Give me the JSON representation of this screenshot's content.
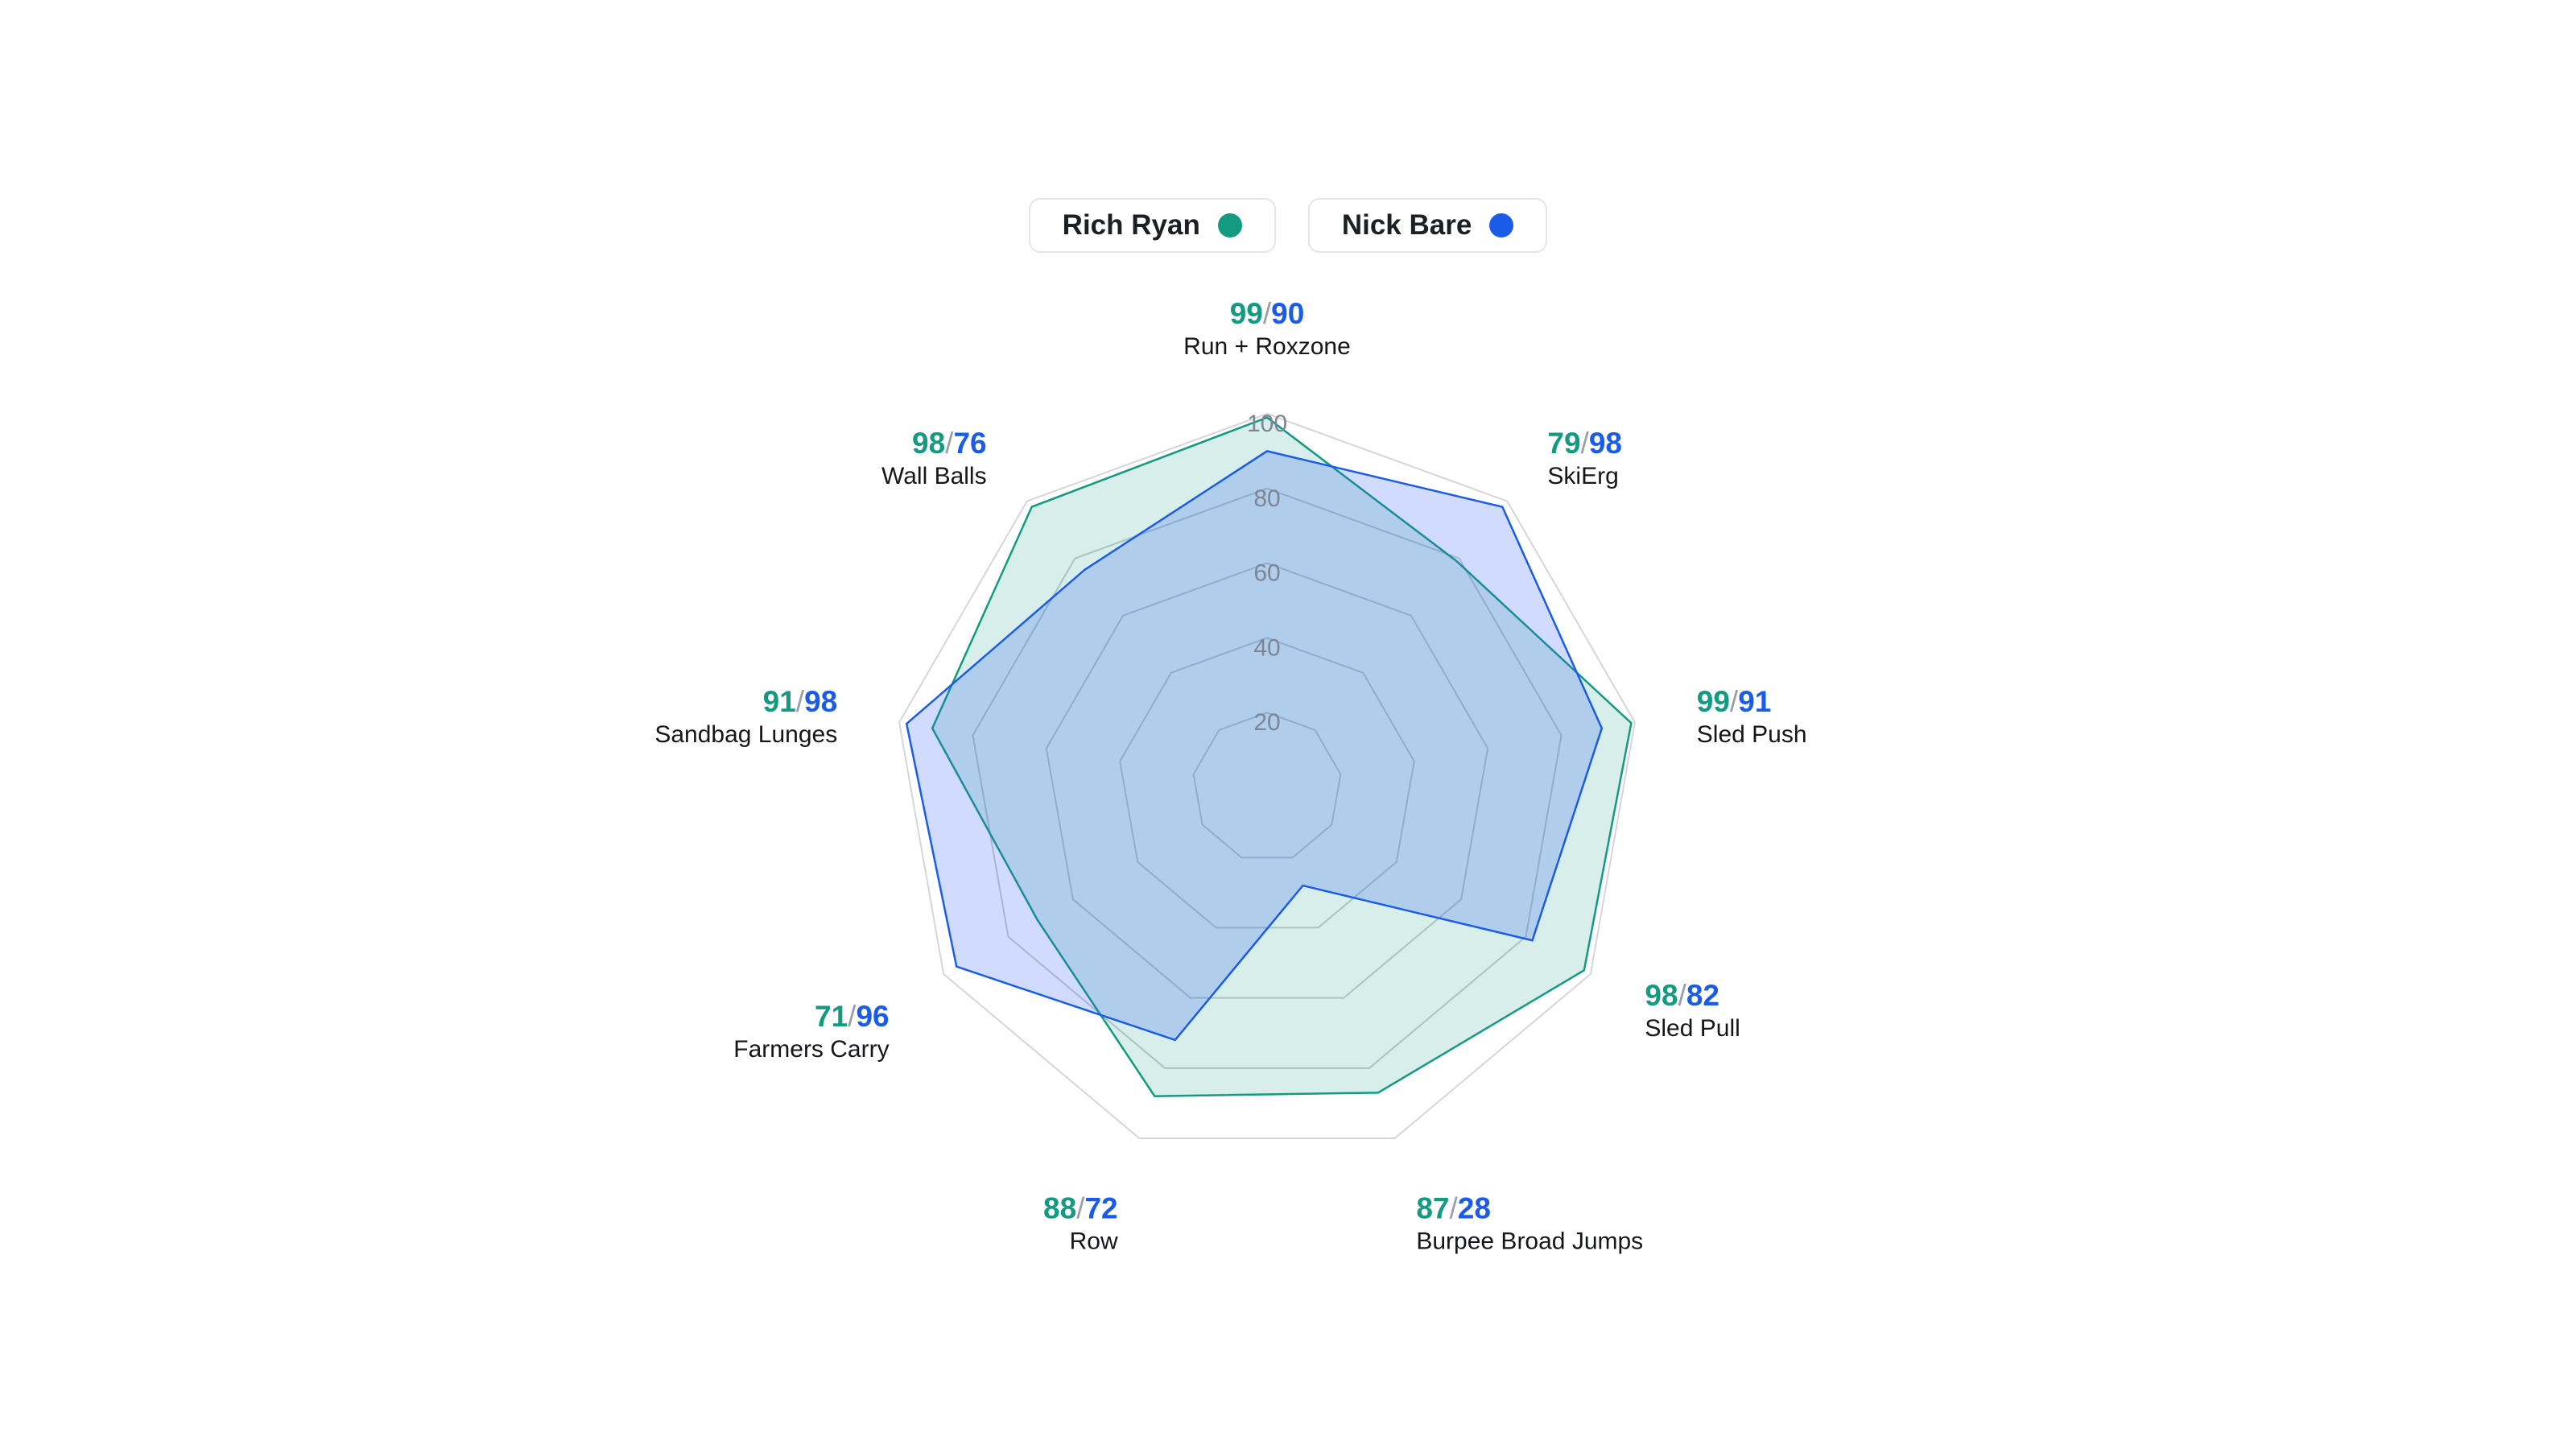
{
  "legend": [
    {
      "name": "Rich Ryan",
      "color": "#139a80"
    },
    {
      "name": "Nick Bare",
      "color": "#1a5ce8"
    }
  ],
  "chart_data": {
    "type": "radar",
    "categories": [
      "Run + Roxzone",
      "SkiErg",
      "Sled Push",
      "Sled Pull",
      "Burpee Broad Jumps",
      "Row",
      "Farmers Carry",
      "Sandbag Lunges",
      "Wall Balls"
    ],
    "series": [
      {
        "name": "Rich Ryan",
        "color": "#139a80",
        "values": [
          99,
          79,
          99,
          98,
          87,
          88,
          71,
          91,
          98
        ]
      },
      {
        "name": "Nick Bare",
        "color": "#1a5ce8",
        "values": [
          90,
          98,
          91,
          82,
          28,
          72,
          96,
          98,
          76
        ]
      }
    ],
    "radial_ticks": [
      20,
      40,
      60,
      80,
      100
    ],
    "range": [
      0,
      100
    ],
    "separator": "/",
    "grid": true,
    "legend_position": "top-center"
  }
}
